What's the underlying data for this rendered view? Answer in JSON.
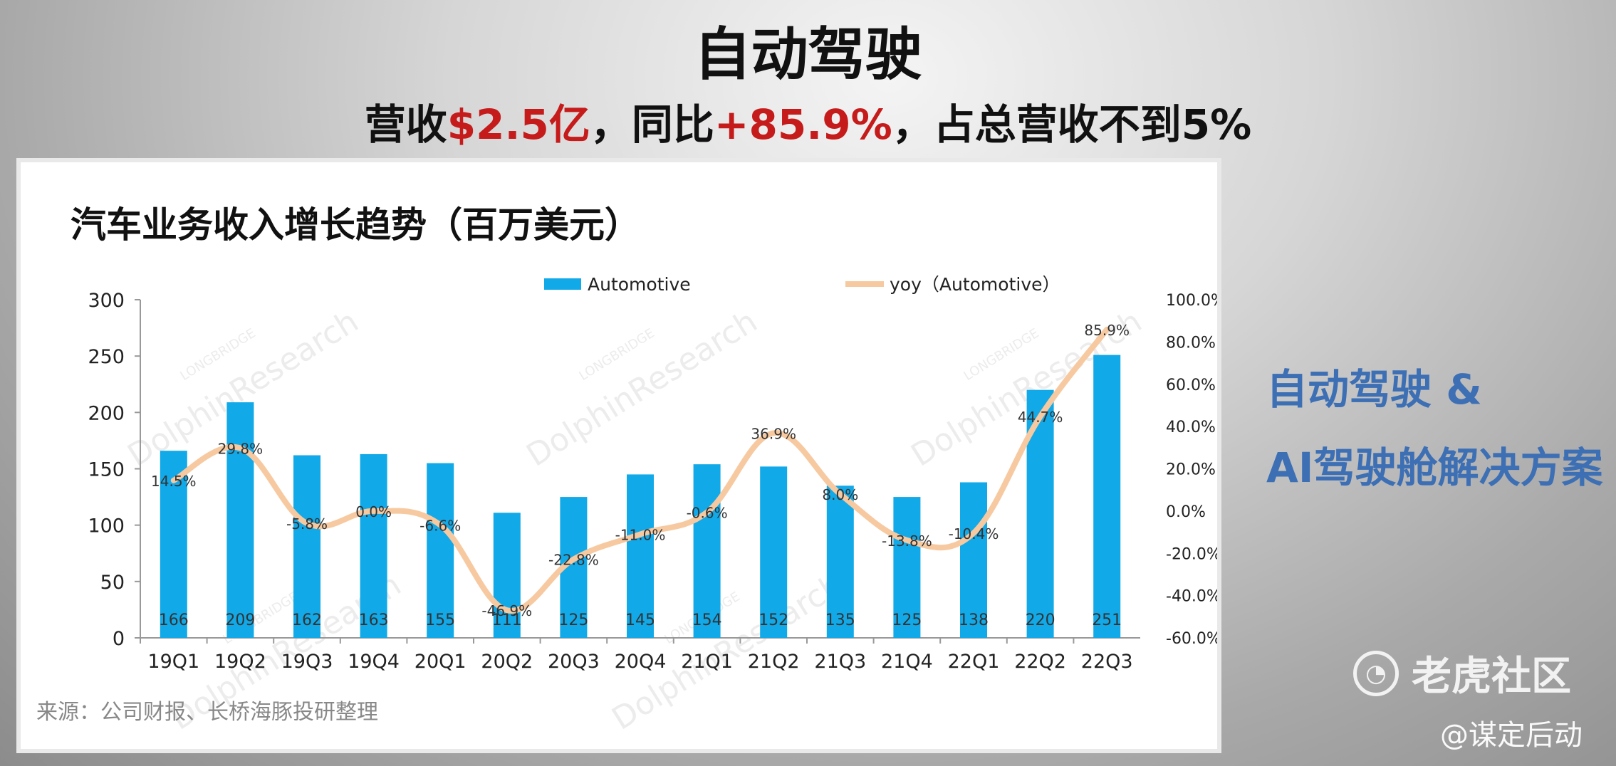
{
  "slide": {
    "title": "自动驾驶",
    "subtitle_parts": [
      "营收",
      "$2.5亿",
      "，同比",
      "+85.9%",
      "，占总营收不到5%"
    ],
    "side_text": [
      "自动驾驶 &",
      "AI驾驶舱解决方案"
    ],
    "brand": "老虎社区",
    "handle": "@谋定后动"
  },
  "colors": {
    "bar": "#12a9e8",
    "line": "#f7c9a0",
    "highlight": "#c61b1b",
    "side_text": "#3d6fb5"
  },
  "chart_data": {
    "type": "bar",
    "title": "汽车业务收入增长趋势（百万美元）",
    "source": "来源：公司财报、长桥海豚投研整理",
    "watermark": "DolphinResearch",
    "watermark_small": "LONGBRIDGE",
    "categories": [
      "19Q1",
      "19Q2",
      "19Q3",
      "19Q4",
      "20Q1",
      "20Q2",
      "20Q3",
      "20Q4",
      "21Q1",
      "21Q2",
      "21Q3",
      "21Q4",
      "22Q1",
      "22Q2",
      "22Q3"
    ],
    "series": [
      {
        "name": "Automotive",
        "type": "bar",
        "axis": "left",
        "values": [
          166,
          209,
          162,
          163,
          155,
          111,
          125,
          145,
          154,
          152,
          135,
          125,
          138,
          220,
          251
        ]
      },
      {
        "name": "yoy（Automotive）",
        "type": "line",
        "axis": "right",
        "values": [
          14.5,
          29.8,
          -5.8,
          0.0,
          -6.6,
          -46.9,
          -22.8,
          -11.0,
          -0.6,
          36.9,
          8.0,
          -13.8,
          -10.4,
          44.7,
          85.9
        ],
        "labels": [
          "14.5%",
          "29.8%",
          "-5.8%",
          "0.0%",
          "-6.6%",
          "-46.9%",
          "-22.8%",
          "-11.0%",
          "-0.6%",
          "36.9%",
          "8.0%",
          "-13.8%",
          "-10.4%",
          "44.7%",
          "85.9%"
        ]
      }
    ],
    "ylim": [
      0,
      300
    ],
    "yticks": [
      0,
      50,
      100,
      150,
      200,
      250,
      300
    ],
    "y2lim": [
      -60,
      100
    ],
    "y2ticks": [
      "100.0%",
      "80.0%",
      "60.0%",
      "40.0%",
      "20.0%",
      "0.0%",
      "-20.0%",
      "-40.0%",
      "-60.0%"
    ],
    "legend_position": "top-center"
  }
}
